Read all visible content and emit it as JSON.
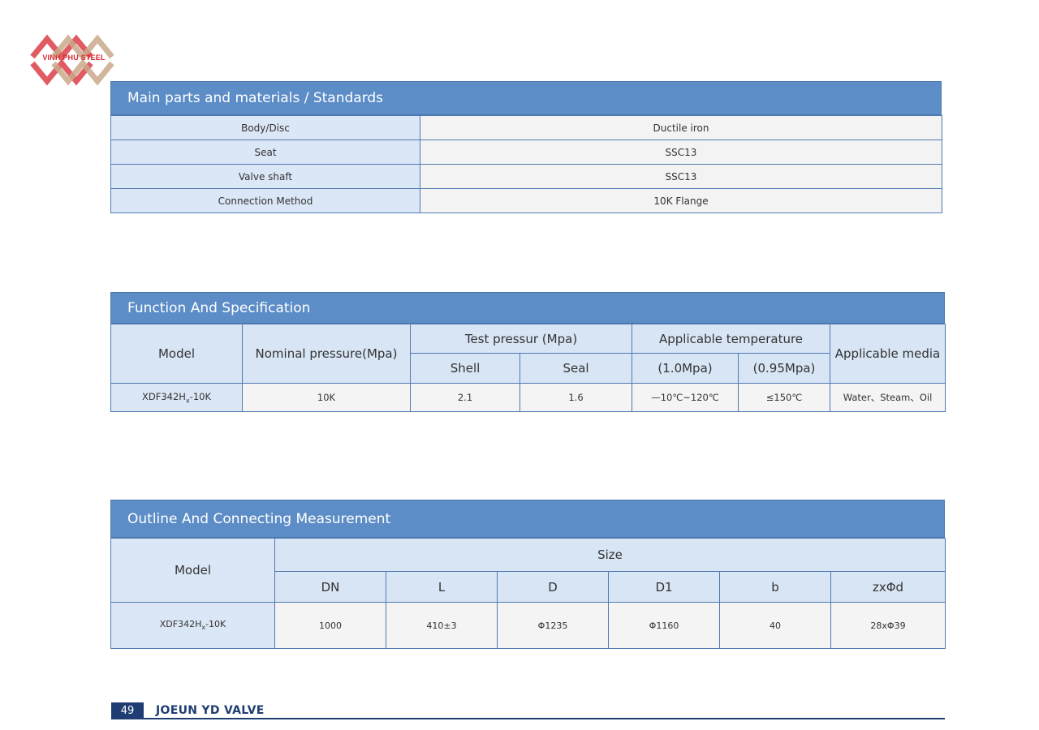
{
  "logo": {
    "text": "VINH PHU STEEL",
    "colors": {
      "red": "#d7262d",
      "tan": "#c9a98a"
    }
  },
  "section1": {
    "title": "Main parts and materials / Standards",
    "rows": [
      {
        "label": "Body/Disc",
        "value": "Ductile iron"
      },
      {
        "label": "Seat",
        "value": "SSC13"
      },
      {
        "label": "Valve shaft",
        "value": "SSC13"
      },
      {
        "label": "Connection Method",
        "value": "10K Flange"
      }
    ]
  },
  "section2": {
    "title": "Function And Specification",
    "headers": {
      "model": "Model",
      "nominal_pressure": "Nominal pressure(Mpa)",
      "test_pressure": "Test pressur (Mpa)",
      "shell": "Shell",
      "seal": "Seal",
      "applicable_temperature": "Applicable temperature",
      "temp_a": "(1.0Mpa)",
      "temp_b": "(0.95Mpa)",
      "applicable_media": "Applicable media"
    },
    "row": {
      "model_base": "XDF342H",
      "model_sub": "x",
      "model_suffix": "-10K",
      "nominal": "10K",
      "shell": "2.1",
      "seal": "1.6",
      "temp_a": "—10℃~120℃",
      "temp_b": "≤150℃",
      "media": "Water、Steam、Oil"
    }
  },
  "section3": {
    "title": "Outline And Connecting Measurement",
    "headers": {
      "model": "Model",
      "size": "Size",
      "dn": "DN",
      "l": "L",
      "d": "D",
      "d1": "D1",
      "b": "b",
      "zxd": "zxΦd"
    },
    "row": {
      "model_base": "XDF342H",
      "model_sub": "x",
      "model_suffix": "-10K",
      "dn": "1000",
      "l": "410±3",
      "d": "Φ1235",
      "d1": "Φ1160",
      "b": "40",
      "zxd": "28xΦ39"
    }
  },
  "footer": {
    "page_number": "49",
    "brand": "JOEUN YD VALVE"
  },
  "colors": {
    "header_bar": "#5c8dc6",
    "header_cell": "#d7e5f5",
    "border": "#4f79b0",
    "footer": "#1f3d73"
  }
}
